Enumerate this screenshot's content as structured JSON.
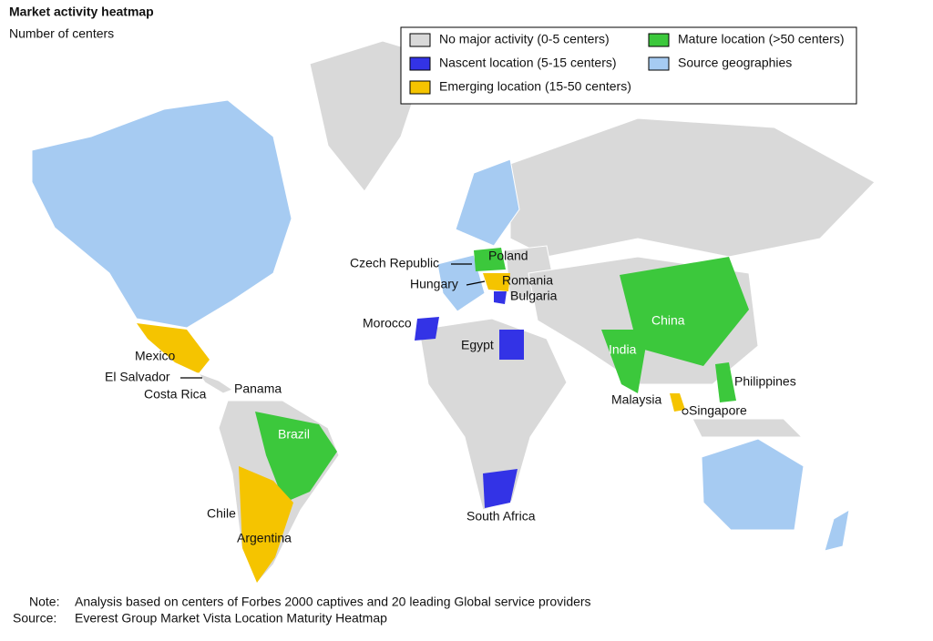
{
  "header": {
    "title": "Market activity heatmap",
    "subtitle": "Number of centers"
  },
  "legend": [
    {
      "label": "No major activity (0-5 centers)",
      "color": "#d9d9d9"
    },
    {
      "label": "Nascent location (5-15 centers)",
      "color": "#3333e6"
    },
    {
      "label": "Emerging location (15-50 centers)",
      "color": "#f5c400"
    },
    {
      "label": "Mature location (>50 centers)",
      "color": "#3cc83c"
    },
    {
      "label": "Source geographies",
      "color": "#a6cbf2"
    }
  ],
  "labels": [
    "Mexico",
    "El Salvador",
    "Costa Rica",
    "Panama",
    "Brazil",
    "Chile",
    "Argentina",
    "Czech Republic",
    "Poland",
    "Hungary",
    "Romania",
    "Bulgaria",
    "Morocco",
    "Egypt",
    "South Africa",
    "China",
    "India",
    "Philippines",
    "Malaysia",
    "Singapore"
  ],
  "notes": [
    {
      "key": "Note:",
      "text": "Analysis based on centers of Forbes 2000 captives and 20 leading Global service providers"
    },
    {
      "key": "Source:",
      "text": "Everest Group Market Vista Location Maturity Heatmap"
    }
  ]
}
